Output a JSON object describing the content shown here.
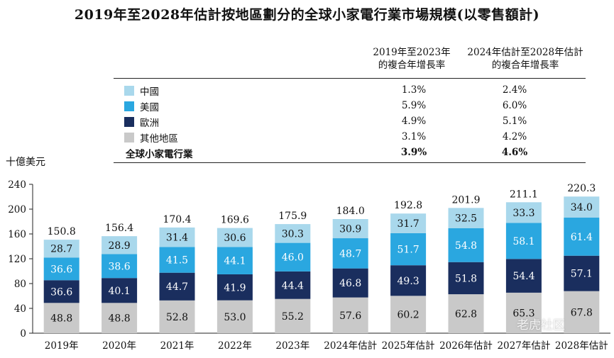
{
  "title": "2019年至2028年估計按地區劃分的全球小家電行業市場規模(以零售額計)",
  "table": {
    "header_1": [
      "2019年至2023年",
      "的複合年增長率"
    ],
    "header_2": [
      "2024年估計至2028年估計",
      "的複合年增長率"
    ],
    "rows": [
      {
        "label": "中國",
        "color": "#a9d8ec",
        "cagr1": "1.3%",
        "cagr2": "2.4%"
      },
      {
        "label": "美國",
        "color": "#2aa7e0",
        "cagr1": "5.9%",
        "cagr2": "6.0%"
      },
      {
        "label": "歐洲",
        "color": "#1a2e5e",
        "cagr1": "4.9%",
        "cagr2": "5.1%"
      },
      {
        "label": "其他地區",
        "color": "#c9c9c9",
        "cagr1": "3.1%",
        "cagr2": "4.2%"
      }
    ],
    "total": {
      "label": "全球小家電行業",
      "cagr1": "3.9%",
      "cagr2": "4.6%"
    }
  },
  "watermark": "老虎社区",
  "chart_data": {
    "type": "bar",
    "stacked": true,
    "ylabel": "十億美元",
    "ylim": [
      0,
      240
    ],
    "yticks": [
      0,
      40,
      80,
      120,
      160,
      200,
      240
    ],
    "categories": [
      "2019年",
      "2020年",
      "2021年",
      "2022年",
      "2023年",
      "2024年估計",
      "2025年估計",
      "2026年估計",
      "2027年估計",
      "2028年估計"
    ],
    "series": [
      {
        "name": "其他地區",
        "color": "#c9c9c9",
        "label_color": "#111111",
        "values": [
          48.8,
          48.8,
          52.8,
          53.0,
          55.2,
          57.6,
          60.2,
          62.8,
          65.3,
          67.8
        ],
        "labels": [
          "48.8",
          "48.8",
          "52.8",
          "53.0",
          "55.2",
          "57.6",
          "60.2",
          "62.8",
          "65.3",
          "67.8"
        ]
      },
      {
        "name": "歐洲",
        "color": "#1a2e5e",
        "label_color": "#ffffff",
        "values": [
          36.6,
          40.1,
          44.7,
          41.9,
          44.4,
          46.8,
          49.3,
          51.8,
          54.4,
          57.1
        ],
        "labels": [
          "36.6",
          "40.1",
          "44.7",
          "41.9",
          "44.4",
          "46.8",
          "49.3",
          "51.8",
          "54.4",
          "57.1"
        ]
      },
      {
        "name": "美國",
        "color": "#2aa7e0",
        "label_color": "#ffffff",
        "values": [
          36.6,
          38.6,
          41.5,
          44.1,
          46.0,
          48.7,
          51.7,
          54.8,
          58.1,
          61.4
        ],
        "labels": [
          "36.6",
          "38.6",
          "41.5",
          "44.1",
          "46.0",
          "48.7",
          "51.7",
          "54.8",
          "58.1",
          "61.4"
        ]
      },
      {
        "name": "中國",
        "color": "#a9d8ec",
        "label_color": "#111111",
        "values": [
          28.7,
          28.9,
          31.4,
          30.6,
          30.3,
          30.9,
          31.7,
          32.5,
          33.3,
          34.0
        ],
        "labels": [
          "28.7",
          "28.9",
          "31.4",
          "30.6",
          "30.3",
          "30.9",
          "31.7",
          "32.5",
          "33.3",
          "34.0"
        ]
      }
    ],
    "totals": [
      "150.8",
      "156.4",
      "170.4",
      "169.6",
      "175.9",
      "184.0",
      "192.8",
      "201.9",
      "211.1",
      "220.3"
    ],
    "grid": false,
    "legend": "top-left table"
  }
}
